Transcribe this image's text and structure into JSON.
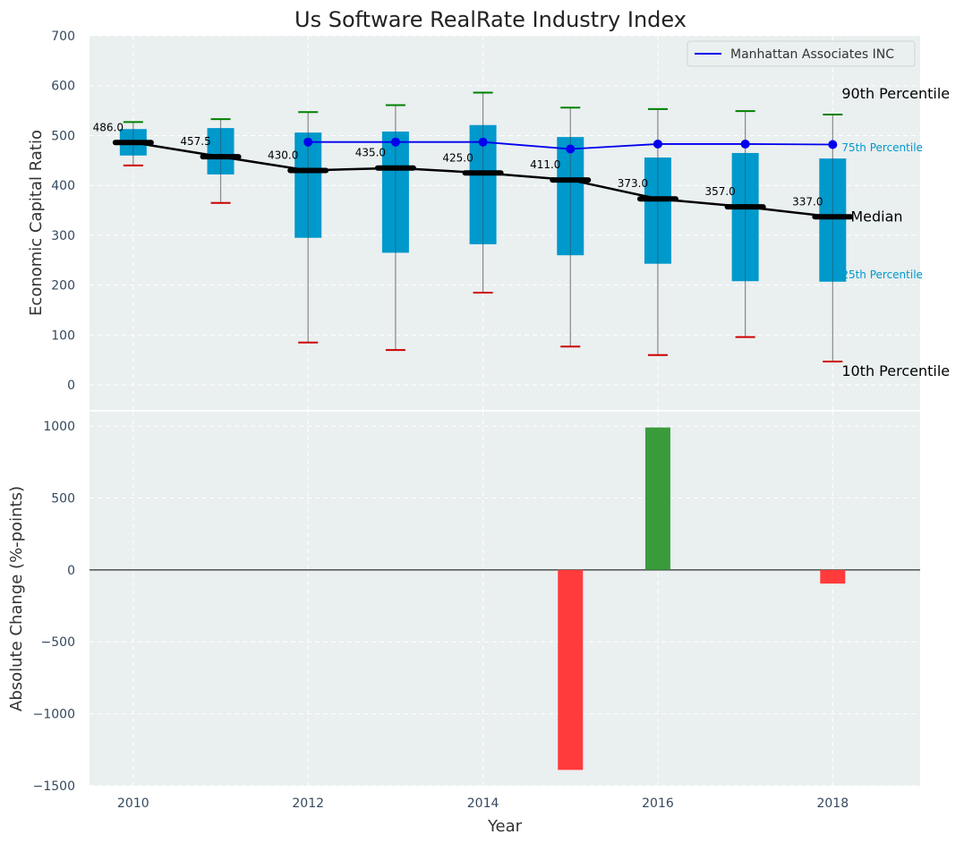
{
  "title": "Us Software RealRate Industry Index",
  "colors": {
    "panel_bg": "#eaeff0",
    "box": "#0099cc",
    "whisker": "#888888",
    "p90_cap": "#008000",
    "p10_cap": "#cc0000",
    "median": "#000000",
    "company": "#0000ee",
    "bar_positive": "#3a9b3a",
    "bar_negative": "#ff3b3b",
    "tick_text": "#34495e"
  },
  "chart_data": [
    {
      "type": "box",
      "ylabel": "Economic Capital Ratio",
      "ylim": [
        -50,
        700
      ],
      "yticks": [
        0,
        100,
        200,
        300,
        400,
        500,
        600,
        700
      ],
      "x": [
        2010,
        2011,
        2012,
        2013,
        2014,
        2015,
        2016,
        2017,
        2018
      ],
      "p10": [
        440,
        365,
        85,
        70,
        185,
        77,
        60,
        96,
        47
      ],
      "p25": [
        460,
        422,
        295,
        265,
        282,
        260,
        243,
        208,
        207
      ],
      "median": [
        486.0,
        457.5,
        430.0,
        435.0,
        425.0,
        411.0,
        373.0,
        357.0,
        337.0
      ],
      "median_labels": [
        "486.0",
        "457.5",
        "430.0",
        "435.0",
        "425.0",
        "411.0",
        "373.0",
        "357.0",
        "337.0"
      ],
      "p75": [
        513,
        515,
        506,
        508,
        521,
        497,
        456,
        465,
        454
      ],
      "p90": [
        527,
        533,
        547,
        561,
        586,
        556,
        553,
        549,
        542
      ],
      "series": [
        {
          "name": "Manhattan Associates INC",
          "x": [
            2012,
            2013,
            2014,
            2015,
            2016,
            2017,
            2018
          ],
          "values": [
            487,
            487,
            487,
            473,
            483,
            483,
            482
          ]
        }
      ],
      "annotations": {
        "p90": "90th Percentile",
        "p75": "75th Percentile",
        "median": "Median",
        "p25": "25th Percentile",
        "p10": "10th Percentile"
      },
      "legend_position": "top-right",
      "grid": true
    },
    {
      "type": "bar",
      "xlabel": "Year",
      "ylabel": "Absolute Change (%-points)",
      "ylim": [
        -1500,
        1100
      ],
      "yticks": [
        -1500,
        -1000,
        -500,
        0,
        500,
        1000
      ],
      "ytick_labels": [
        "−1500",
        "−1000",
        "−500",
        "0",
        "500",
        "1000"
      ],
      "x": [
        2015,
        2016,
        2018
      ],
      "values": [
        -1390,
        990,
        -95
      ],
      "xlim": [
        2009.5,
        2019
      ],
      "xticks": [
        2010,
        2012,
        2014,
        2016,
        2018
      ],
      "grid": true
    }
  ]
}
